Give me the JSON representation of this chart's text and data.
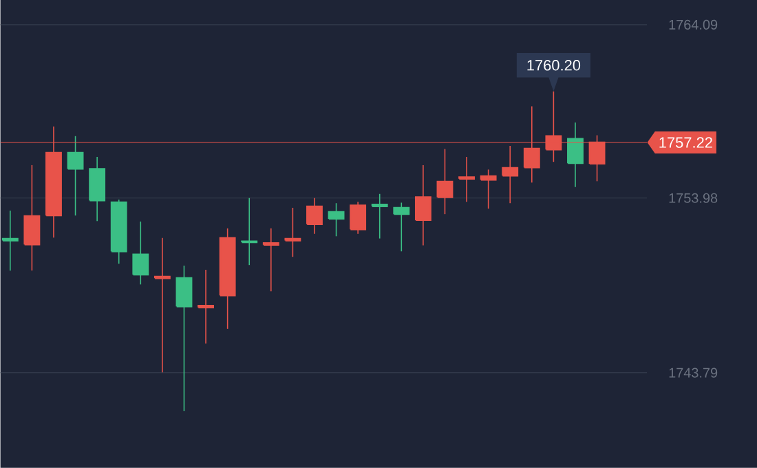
{
  "chart_data": {
    "type": "candlestick",
    "categories": [
      null,
      null,
      null,
      null,
      null,
      null,
      null,
      null,
      null,
      null,
      null,
      null,
      null,
      null,
      null,
      null,
      null,
      null,
      null,
      null,
      null,
      null,
      null,
      null,
      null,
      null,
      null,
      null
    ],
    "ohlc": [
      [
        1751.6,
        1753.25,
        1749.75,
        1751.5
      ],
      [
        1751.27,
        1755.9,
        1749.75,
        1752.93
      ],
      [
        1752.96,
        1758.15,
        1751.67,
        1756.62
      ],
      [
        1756.62,
        1757.59,
        1752.96,
        1755.68
      ],
      [
        1755.68,
        1756.38,
        1752.64,
        1753.84
      ],
      [
        1753.73,
        1753.89,
        1750.15,
        1750.87
      ],
      [
        1750.69,
        1752.61,
        1748.94,
        1749.51
      ],
      [
        1749.3,
        1751.65,
        1743.81,
        1749.4
      ],
      [
        1749.32,
        1750.04,
        1741.56,
        1747.66
      ],
      [
        1747.6,
        1749.8,
        1745.49,
        1747.7
      ],
      [
        1748.3,
        1752.21,
        1746.35,
        1751.65
      ],
      [
        1751.45,
        1753.98,
        1750.07,
        1751.4
      ],
      [
        1751.25,
        1752.21,
        1748.54,
        1751.35
      ],
      [
        1751.5,
        1753.41,
        1750.55,
        1751.6
      ],
      [
        1752.45,
        1753.98,
        1751.89,
        1753.49
      ],
      [
        1753.17,
        1753.68,
        1751.75,
        1752.77
      ],
      [
        1752.15,
        1753.76,
        1751.89,
        1753.55
      ],
      [
        1753.6,
        1754.22,
        1751.62,
        1753.5
      ],
      [
        1753.41,
        1753.71,
        1750.87,
        1753.04
      ],
      [
        1752.69,
        1755.9,
        1751.22,
        1754.03
      ],
      [
        1754.03,
        1756.84,
        1753.04,
        1754.94
      ],
      [
        1755.1,
        1756.38,
        1753.76,
        1755.2
      ],
      [
        1755.04,
        1755.64,
        1753.36,
        1755.26
      ],
      [
        1755.28,
        1757.02,
        1753.68,
        1755.74
      ],
      [
        1755.76,
        1759.33,
        1754.88,
        1756.86
      ],
      [
        1756.81,
        1760.2,
        1756.09,
        1757.59
      ],
      [
        1757.43,
        1758.39,
        1754.62,
        1756.01
      ],
      [
        1755.98,
        1757.64,
        1754.96,
        1757.22
      ]
    ],
    "colors": [
      "#3bbf85",
      "#e8534a",
      "#e8534a",
      "#3bbf85",
      "#3bbf85",
      "#3bbf85",
      "#3bbf85",
      "#e8534a",
      "#3bbf85",
      "#e8534a",
      "#e8534a",
      "#3bbf85",
      "#e8534a",
      "#e8534a",
      "#e8534a",
      "#3bbf85",
      "#e8534a",
      "#3bbf85",
      "#3bbf85",
      "#e8534a",
      "#e8534a",
      "#e8534a",
      "#e8534a",
      "#e8534a",
      "#e8534a",
      "#e8534a",
      "#3bbf85",
      "#e8534a"
    ],
    "ylim": [
      1738.25,
      1765.53
    ],
    "yticks": [
      1764.09,
      1753.98,
      1743.79
    ],
    "grid": "y",
    "ref_lines": [
      {
        "axis": "y",
        "value": 1757.22,
        "label": "1757.22",
        "color": "#e8534a"
      }
    ],
    "annotations": [
      {
        "text": "1760.20",
        "y": 1760.2
      }
    ]
  }
}
